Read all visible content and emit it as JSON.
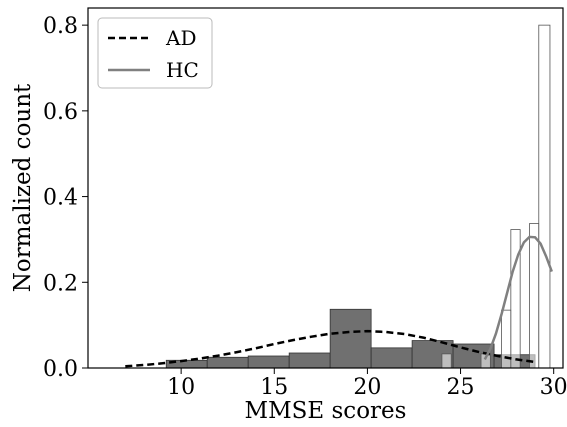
{
  "chart_data": {
    "type": "bar",
    "xlabel": "MMSE scores",
    "ylabel": "Normalized count",
    "xlim": [
      5,
      30.5
    ],
    "ylim": [
      0,
      0.84
    ],
    "xticks": [
      "10",
      "15",
      "20",
      "25",
      "30"
    ],
    "yticks": [
      "0.0",
      "0.2",
      "0.4",
      "0.6",
      "0.8"
    ],
    "grid": false,
    "legend_position": "top-left",
    "series": [
      {
        "name": "AD",
        "kind": "histogram",
        "color": "#707070",
        "bins": [
          {
            "x0": 9.2,
            "x1": 11.4,
            "value": 0.018
          },
          {
            "x0": 11.4,
            "x1": 13.6,
            "value": 0.025
          },
          {
            "x0": 13.6,
            "x1": 15.8,
            "value": 0.028
          },
          {
            "x0": 15.8,
            "x1": 18.0,
            "value": 0.035
          },
          {
            "x0": 18.0,
            "x1": 20.2,
            "value": 0.137
          },
          {
            "x0": 20.2,
            "x1": 22.4,
            "value": 0.047
          },
          {
            "x0": 22.4,
            "x1": 24.6,
            "value": 0.064
          },
          {
            "x0": 24.6,
            "x1": 26.8,
            "value": 0.056
          },
          {
            "x0": 26.8,
            "x1": 29.0,
            "value": 0.031
          }
        ]
      },
      {
        "name": "HC",
        "kind": "histogram",
        "color": "#ffffff",
        "bins": [
          {
            "x0": 24.0,
            "x1": 24.5,
            "value": 0.033
          },
          {
            "x0": 26.1,
            "x1": 26.6,
            "value": 0.033
          },
          {
            "x0": 27.2,
            "x1": 27.7,
            "value": 0.135
          },
          {
            "x0": 27.7,
            "x1": 28.2,
            "value": 0.323
          },
          {
            "x0": 28.7,
            "x1": 29.2,
            "value": 0.337
          },
          {
            "x0": 29.2,
            "x1": 29.8,
            "value": 0.8
          }
        ]
      }
    ],
    "curves": [
      {
        "name": "AD",
        "style": "dashed",
        "color": "#000000",
        "x": [
          7,
          8,
          9,
          10,
          11,
          12,
          13,
          14,
          15,
          16,
          17,
          18,
          19,
          20,
          21,
          22,
          23,
          24,
          25,
          26,
          27,
          28,
          29
        ],
        "y": [
          0.004,
          0.007,
          0.011,
          0.016,
          0.022,
          0.029,
          0.037,
          0.046,
          0.056,
          0.065,
          0.073,
          0.08,
          0.084,
          0.086,
          0.084,
          0.079,
          0.071,
          0.06,
          0.048,
          0.037,
          0.028,
          0.02,
          0.014
        ]
      },
      {
        "name": "HC",
        "style": "solid",
        "color": "#808080",
        "x": [
          26.3,
          26.6,
          26.9,
          27.2,
          27.5,
          27.8,
          28.1,
          28.4,
          28.7,
          29.0,
          29.3,
          29.6,
          29.9
        ],
        "y": [
          0.02,
          0.045,
          0.08,
          0.125,
          0.175,
          0.225,
          0.265,
          0.293,
          0.306,
          0.305,
          0.29,
          0.26,
          0.225
        ]
      }
    ]
  }
}
